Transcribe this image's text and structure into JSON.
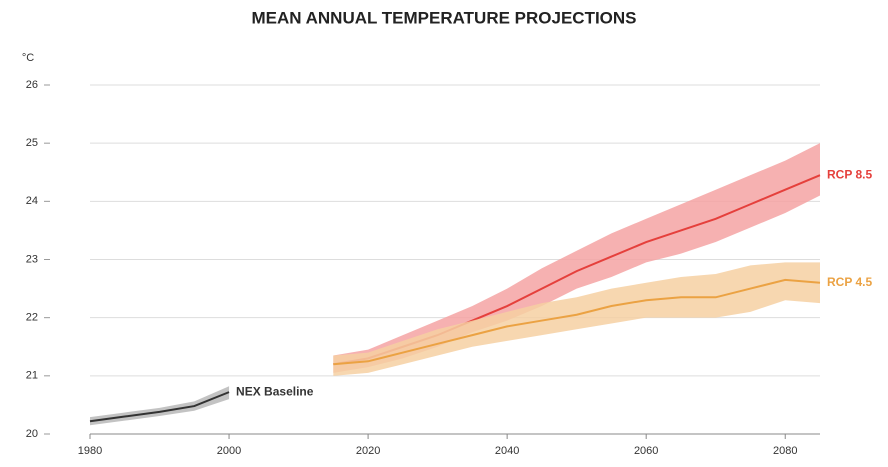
{
  "chart_data": {
    "type": "line",
    "title": "MEAN ANNUAL TEMPERATURE PROJECTIONS",
    "y_label": "°C",
    "xlim": [
      1980,
      2085
    ],
    "xticks": [
      1980,
      2000,
      2020,
      2040,
      2060,
      2080
    ],
    "ylim": [
      20,
      26
    ],
    "yticks": [
      20,
      21,
      22,
      23,
      24,
      25,
      26
    ],
    "grid": true,
    "series": [
      {
        "name": "NEX Baseline",
        "color": "#333333",
        "band_color": "#b8b8b8",
        "x": [
          1980,
          1985,
          1990,
          1995,
          2000
        ],
        "values": [
          20.22,
          20.3,
          20.38,
          20.48,
          20.72
        ],
        "lower": [
          20.15,
          20.23,
          20.31,
          20.4,
          20.6
        ],
        "upper": [
          20.29,
          20.37,
          20.45,
          20.56,
          20.82
        ]
      },
      {
        "name": "RCP 8.5",
        "color": "#e5403c",
        "band_color": "#f4a3a3",
        "x": [
          2015,
          2020,
          2025,
          2030,
          2035,
          2040,
          2045,
          2050,
          2055,
          2060,
          2065,
          2070,
          2075,
          2080,
          2085
        ],
        "values": [
          21.2,
          21.3,
          21.5,
          21.7,
          21.95,
          22.2,
          22.5,
          22.8,
          23.05,
          23.3,
          23.5,
          23.7,
          23.95,
          24.2,
          24.45
        ],
        "lower": [
          21.05,
          21.15,
          21.3,
          21.5,
          21.75,
          21.95,
          22.2,
          22.5,
          22.7,
          22.95,
          23.1,
          23.3,
          23.55,
          23.8,
          24.1
        ],
        "upper": [
          21.35,
          21.45,
          21.7,
          21.95,
          22.2,
          22.5,
          22.85,
          23.15,
          23.45,
          23.7,
          23.95,
          24.2,
          24.45,
          24.7,
          25.0
        ]
      },
      {
        "name": "RCP 4.5",
        "color": "#eba243",
        "band_color": "#f6d0a2",
        "x": [
          2015,
          2020,
          2025,
          2030,
          2035,
          2040,
          2045,
          2050,
          2055,
          2060,
          2065,
          2070,
          2075,
          2080,
          2085
        ],
        "values": [
          21.2,
          21.25,
          21.4,
          21.55,
          21.7,
          21.85,
          21.95,
          22.05,
          22.2,
          22.3,
          22.35,
          22.35,
          22.5,
          22.65,
          22.6
        ],
        "lower": [
          21.0,
          21.05,
          21.2,
          21.35,
          21.5,
          21.6,
          21.7,
          21.8,
          21.9,
          22.0,
          22.0,
          22.0,
          22.1,
          22.3,
          22.25
        ],
        "upper": [
          21.35,
          21.4,
          21.6,
          21.8,
          21.95,
          22.1,
          22.25,
          22.35,
          22.5,
          22.6,
          22.7,
          22.75,
          22.9,
          22.95,
          22.95
        ]
      }
    ]
  }
}
